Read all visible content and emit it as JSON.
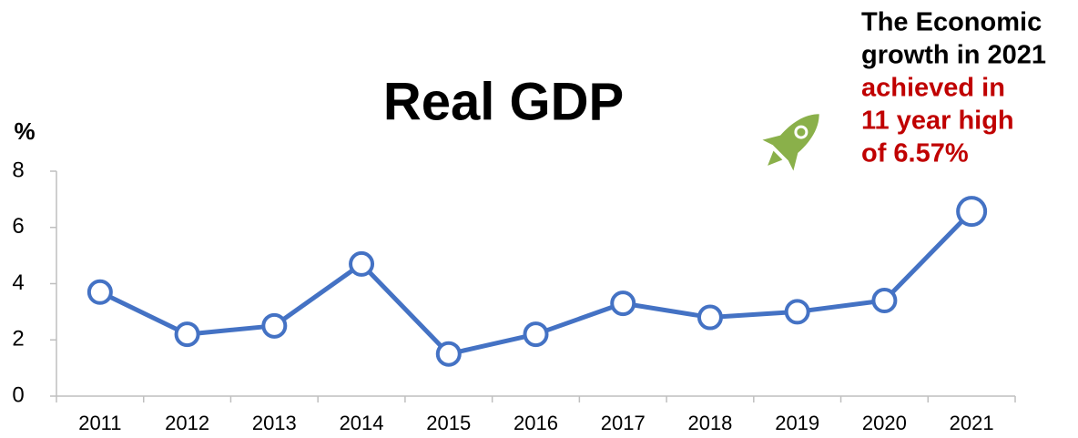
{
  "chart_data": {
    "type": "line",
    "title": "Real GDP",
    "y_label": "%",
    "categories": [
      "2011",
      "2012",
      "2013",
      "2014",
      "2015",
      "2016",
      "2017",
      "2018",
      "2019",
      "2020",
      "2021"
    ],
    "series": [
      {
        "name": "Real GDP",
        "color": "#4472c4",
        "values": [
          3.7,
          2.2,
          2.5,
          4.7,
          1.5,
          2.2,
          3.3,
          2.8,
          3.0,
          3.4,
          6.57
        ]
      }
    ],
    "ylim": [
      0,
      8
    ],
    "yticks": [
      0,
      2,
      4,
      6,
      8
    ],
    "grid": false,
    "annotation": {
      "lines": [
        "The Economic",
        "growth in 2021",
        "achieved in",
        "11 year high",
        "of 6.57%"
      ],
      "colors": [
        "#000000",
        "#000000",
        "#c00000",
        "#c00000",
        "#c00000"
      ]
    }
  }
}
